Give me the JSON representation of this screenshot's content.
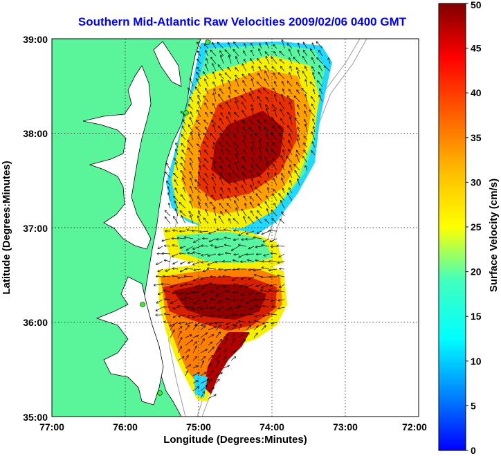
{
  "title": "Southern Mid-Atlantic Raw Velocities 2009/02/06 0400 GMT",
  "x_axis": {
    "label": "Longitude (Degrees:Minutes)",
    "ticks": [
      "77:00",
      "76:00",
      "75:00",
      "74:00",
      "73:00",
      "72:00"
    ]
  },
  "y_axis": {
    "label": "Latitude (Degrees:Minutes)",
    "ticks": [
      "39:00",
      "38:00",
      "37:00",
      "36:00",
      "35:00"
    ]
  },
  "colorbar": {
    "label": "Surface Velocity (cm/s)",
    "ticks": [
      "0",
      "5",
      "10",
      "15",
      "20",
      "25",
      "30",
      "35",
      "40",
      "45",
      "50"
    ],
    "min": 0,
    "max": 50
  },
  "colors": {
    "land": "#5af59a",
    "water": "#ffffff",
    "title": "#0000ee",
    "coast": "#000000",
    "bathymetry": "#9a9a9a",
    "station": "#33ee33"
  },
  "map_extent": {
    "lon": [
      -77,
      -72
    ],
    "lat": [
      35,
      39
    ]
  }
}
